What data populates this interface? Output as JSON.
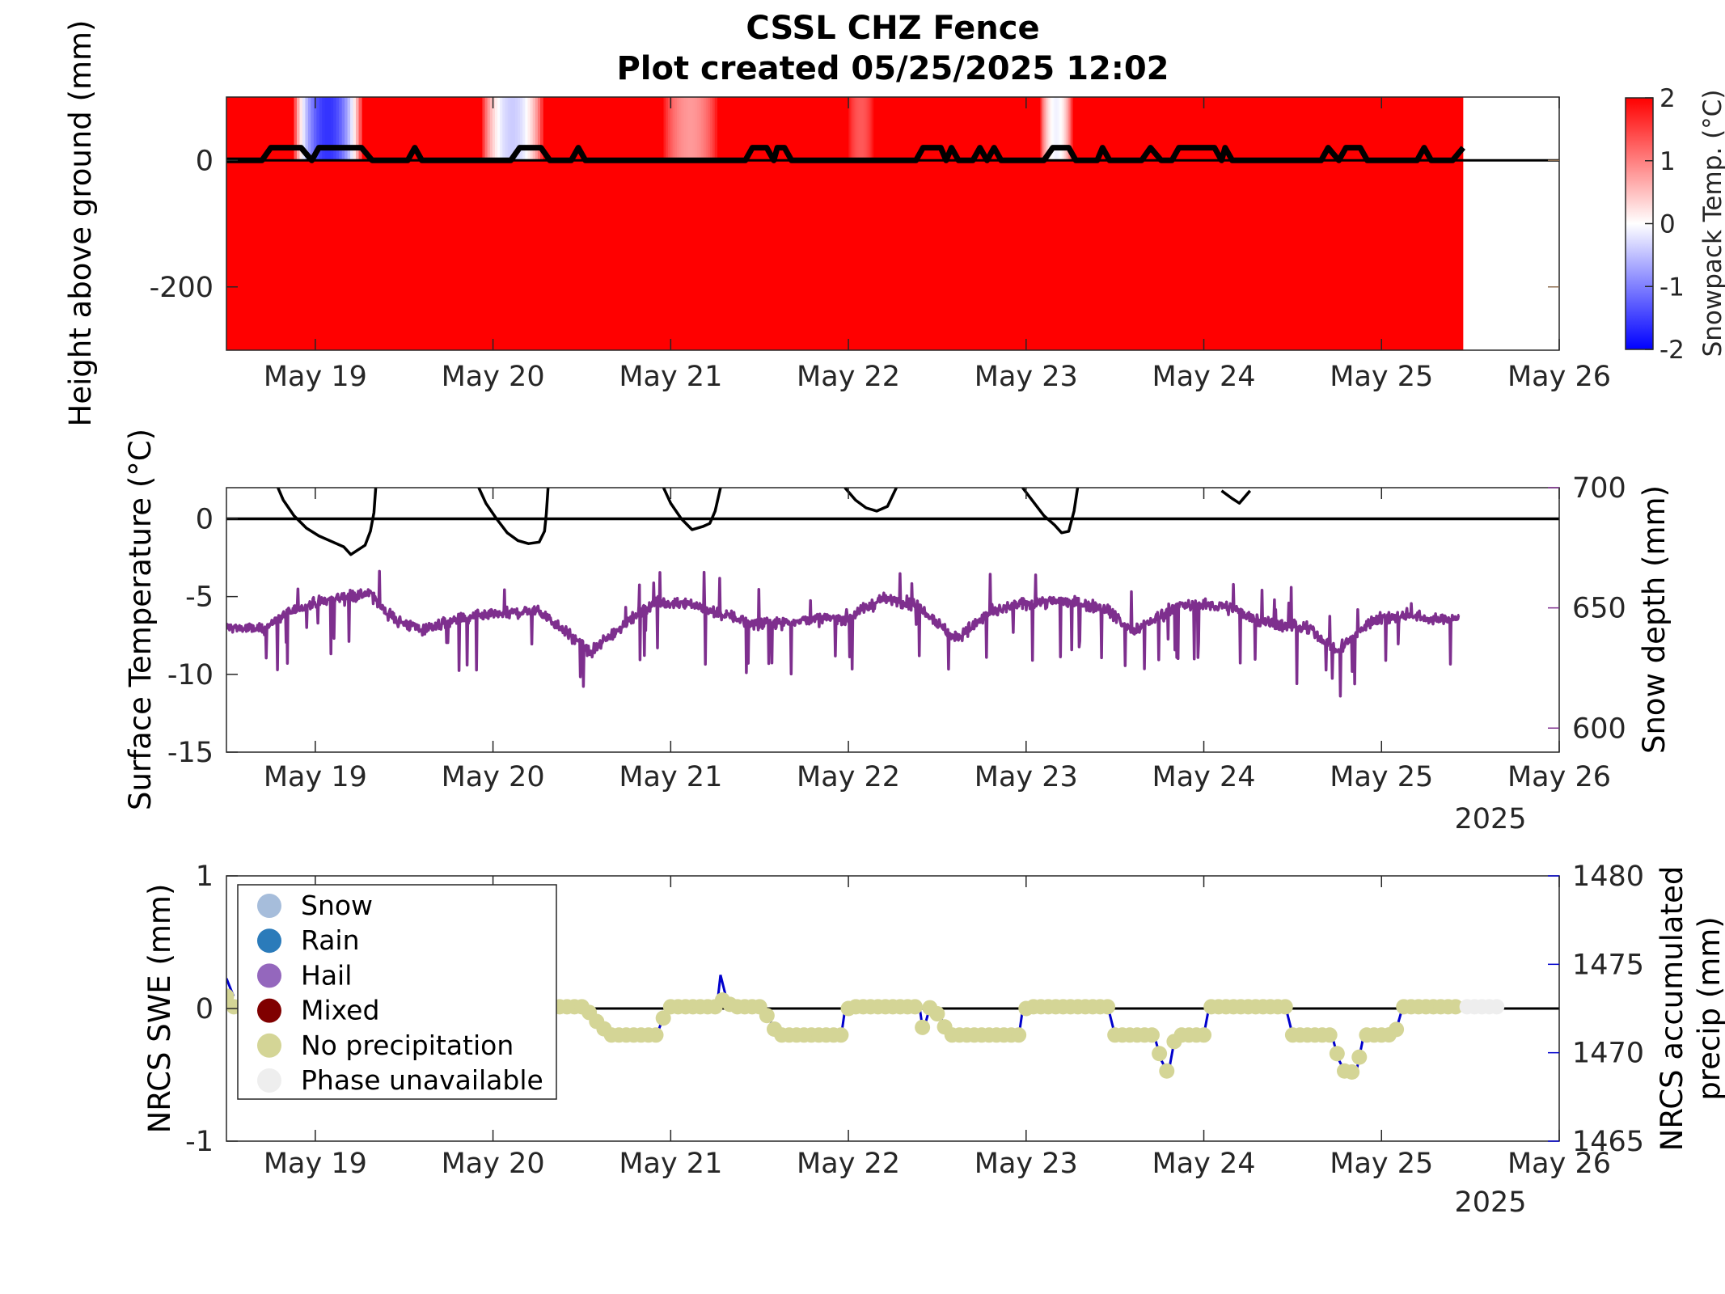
{
  "title": {
    "line1": "CSSL CHZ Fence",
    "line2": "Plot created 05/25/2025 12:02"
  },
  "colors": {
    "snowpack_hot": "#ff0000",
    "snowpack_cold": "#0000ff",
    "snow_depth": "#7e2f8e",
    "precip": "#0000cc",
    "no_precip_marker": "#d4d596",
    "phase_unavailable": "#eeeeee",
    "snow": "#a6bddb",
    "rain": "#2b7bba",
    "hail": "#9467bd",
    "mixed": "#800000"
  },
  "chart_data": [
    {
      "type": "heatmap",
      "id": "snowpack",
      "ylabel": "Height above ground (mm)",
      "ylim": [
        -300,
        100
      ],
      "yticks": [
        -200,
        0
      ],
      "xticks": [
        "May 19",
        "May 20",
        "May 21",
        "May 22",
        "May 23",
        "May 24",
        "May 25",
        "May 26"
      ],
      "xlim": [
        18.5,
        26.0
      ],
      "data_end": 25.46,
      "colorbar": {
        "label": "Snowpack Temp. (°C)",
        "range": [
          -2,
          2
        ],
        "ticks": [
          "-2",
          "-1",
          "0",
          "1",
          "2"
        ],
        "colormap": "blue-white-red"
      },
      "note_fill": "cells below ground are +2 °C; above-ground cells show cold bands",
      "cold_bands": [
        {
          "x0": 18.88,
          "x1": 19.26,
          "temp": -1.6
        },
        {
          "x0": 19.94,
          "x1": 20.28,
          "temp": -0.4
        },
        {
          "x0": 20.96,
          "x1": 21.26,
          "temp": 0.8
        },
        {
          "x0": 22.0,
          "x1": 22.14,
          "temp": 1.3
        },
        {
          "x0": 23.08,
          "x1": 23.26,
          "temp": -0.1
        }
      ],
      "snow_surface_line": [
        [
          18.5,
          0
        ],
        [
          18.7,
          0
        ],
        [
          18.75,
          20
        ],
        [
          18.92,
          20
        ],
        [
          18.98,
          0
        ],
        [
          19.02,
          20
        ],
        [
          19.26,
          20
        ],
        [
          19.32,
          0
        ],
        [
          19.52,
          0
        ],
        [
          19.56,
          20
        ],
        [
          19.6,
          0
        ],
        [
          20.1,
          0
        ],
        [
          20.15,
          20
        ],
        [
          20.27,
          20
        ],
        [
          20.32,
          0
        ],
        [
          20.44,
          0
        ],
        [
          20.48,
          20
        ],
        [
          20.52,
          0
        ],
        [
          21.42,
          0
        ],
        [
          21.46,
          20
        ],
        [
          21.54,
          20
        ],
        [
          21.58,
          0
        ],
        [
          21.6,
          20
        ],
        [
          21.64,
          20
        ],
        [
          21.68,
          0
        ],
        [
          22.38,
          0
        ],
        [
          22.42,
          20
        ],
        [
          22.52,
          20
        ],
        [
          22.55,
          0
        ],
        [
          22.58,
          20
        ],
        [
          22.62,
          0
        ],
        [
          22.7,
          0
        ],
        [
          22.74,
          20
        ],
        [
          22.78,
          0
        ],
        [
          22.82,
          20
        ],
        [
          22.86,
          0
        ],
        [
          23.1,
          0
        ],
        [
          23.15,
          20
        ],
        [
          23.24,
          20
        ],
        [
          23.28,
          0
        ],
        [
          23.4,
          0
        ],
        [
          23.43,
          20
        ],
        [
          23.47,
          0
        ],
        [
          23.65,
          0
        ],
        [
          23.7,
          20
        ],
        [
          23.76,
          0
        ],
        [
          23.82,
          0
        ],
        [
          23.86,
          20
        ],
        [
          24.06,
          20
        ],
        [
          24.1,
          0
        ],
        [
          24.12,
          20
        ],
        [
          24.16,
          0
        ],
        [
          24.66,
          0
        ],
        [
          24.7,
          20
        ],
        [
          24.76,
          0
        ],
        [
          24.8,
          20
        ],
        [
          24.88,
          20
        ],
        [
          24.92,
          0
        ],
        [
          25.2,
          0
        ],
        [
          25.24,
          20
        ],
        [
          25.28,
          0
        ],
        [
          25.4,
          0
        ],
        [
          25.46,
          20
        ]
      ],
      "zero_line": 0
    },
    {
      "type": "line",
      "id": "surface",
      "ylabel": "Surface Temperature (°C)",
      "ylim": [
        -15,
        2
      ],
      "yticks": [
        "0",
        "-5",
        "-10",
        "-15"
      ],
      "y2label": "Snow depth (mm)",
      "y2lim": [
        590,
        700
      ],
      "y2ticks": [
        "600",
        "650",
        "700"
      ],
      "xticks": [
        "May 19",
        "May 20",
        "May 21",
        "May 22",
        "May 23",
        "May 24",
        "May 25",
        "May 26"
      ],
      "xyear": "2025",
      "xlim": [
        18.5,
        26.0
      ],
      "zero_line": 0,
      "series": [
        {
          "role": "surface-temperature",
          "segments": [
            [
              [
                18.79,
                2
              ],
              [
                18.82,
                1.2
              ],
              [
                18.88,
                0.2
              ],
              [
                18.95,
                -0.6
              ],
              [
                19.02,
                -1.1
              ],
              [
                19.1,
                -1.5
              ],
              [
                19.16,
                -1.8
              ],
              [
                19.2,
                -2.3
              ],
              [
                19.24,
                -2.0
              ],
              [
                19.28,
                -1.7
              ],
              [
                19.31,
                -0.8
              ],
              [
                19.33,
                0.4
              ],
              [
                19.34,
                2
              ]
            ],
            [
              [
                19.92,
                2
              ],
              [
                19.96,
                1.0
              ],
              [
                20.02,
                0
              ],
              [
                20.08,
                -0.9
              ],
              [
                20.14,
                -1.4
              ],
              [
                20.2,
                -1.6
              ],
              [
                20.26,
                -1.5
              ],
              [
                20.29,
                -0.8
              ],
              [
                20.3,
                0.3
              ],
              [
                20.31,
                2
              ]
            ],
            [
              [
                20.96,
                2
              ],
              [
                21.0,
                1.0
              ],
              [
                21.06,
                0
              ],
              [
                21.12,
                -0.7
              ],
              [
                21.18,
                -0.5
              ],
              [
                21.22,
                -0.3
              ],
              [
                21.25,
                0.5
              ],
              [
                21.28,
                2
              ]
            ],
            [
              [
                21.98,
                2
              ],
              [
                22.04,
                1.2
              ],
              [
                22.1,
                0.7
              ],
              [
                22.16,
                0.5
              ],
              [
                22.22,
                0.8
              ],
              [
                22.27,
                2
              ]
            ],
            [
              [
                22.98,
                2
              ],
              [
                23.04,
                1.1
              ],
              [
                23.1,
                0.2
              ],
              [
                23.16,
                -0.4
              ],
              [
                23.2,
                -0.9
              ],
              [
                23.24,
                -0.8
              ],
              [
                23.27,
                0.5
              ],
              [
                23.29,
                2
              ]
            ],
            [
              [
                24.1,
                1.8
              ],
              [
                24.16,
                1.3
              ],
              [
                24.2,
                1.0
              ],
              [
                24.26,
                1.8
              ]
            ]
          ]
        },
        {
          "name": "Snow depth (mm)",
          "axis": "right",
          "anchors": [
            [
              18.5,
              642
            ],
            [
              18.7,
              641
            ],
            [
              18.9,
              650
            ],
            [
              19.1,
              654
            ],
            [
              19.3,
              656
            ],
            [
              19.45,
              645
            ],
            [
              19.6,
              641
            ],
            [
              19.8,
              645
            ],
            [
              20.0,
              647
            ],
            [
              20.25,
              649
            ],
            [
              20.4,
              641
            ],
            [
              20.55,
              631
            ],
            [
              20.7,
              641
            ],
            [
              20.9,
              652
            ],
            [
              21.1,
              652
            ],
            [
              21.3,
              647
            ],
            [
              21.5,
              643
            ],
            [
              21.75,
              645
            ],
            [
              22.0,
              646
            ],
            [
              22.2,
              654
            ],
            [
              22.4,
              651
            ],
            [
              22.6,
              637
            ],
            [
              22.8,
              648
            ],
            [
              23.0,
              652
            ],
            [
              23.2,
              653
            ],
            [
              23.45,
              650
            ],
            [
              23.6,
              640
            ],
            [
              23.85,
              651
            ],
            [
              24.1,
              651
            ],
            [
              24.35,
              644
            ],
            [
              24.6,
              641
            ],
            [
              24.75,
              632
            ],
            [
              24.95,
              645
            ],
            [
              25.15,
              647
            ],
            [
              25.3,
              645
            ],
            [
              25.44,
              646
            ]
          ],
          "x_end": 25.44
        }
      ]
    },
    {
      "type": "scatter",
      "id": "precip",
      "ylabel": "NRCS SWE (mm)",
      "ylim": [
        -1,
        1
      ],
      "yticks": [
        "1",
        "0",
        "-1"
      ],
      "y2label": "NRCS accumulated precip (mm)",
      "y2label_lines": [
        "NRCS accumulated",
        "precip (mm)"
      ],
      "y2lim": [
        1465,
        1480
      ],
      "y2ticks": [
        "1480",
        "1475",
        "1470",
        "1465"
      ],
      "xticks": [
        "May 19",
        "May 20",
        "May 21",
        "May 22",
        "May 23",
        "May 24",
        "May 25",
        "May 26"
      ],
      "xyear": "2025",
      "xlim": [
        18.5,
        26.0
      ],
      "zero_line": 0,
      "legend": {
        "placement": "top-left",
        "entries": [
          "Snow",
          "Rain",
          "Hail",
          "Mixed",
          "No precipitation",
          "Phase unavailable"
        ]
      },
      "levels": [
        [
          18.5,
          1473.2
        ],
        [
          18.54,
          1472.6
        ],
        [
          19.1,
          1472.6
        ],
        [
          20.35,
          1472.6
        ],
        [
          20.52,
          1472.6
        ],
        [
          20.56,
          1472.0
        ],
        [
          20.66,
          1471.0
        ],
        [
          20.92,
          1471.0
        ],
        [
          20.96,
          1472.0
        ],
        [
          21.0,
          1472.6
        ],
        [
          21.26,
          1472.6
        ],
        [
          21.31,
          1473.2
        ],
        [
          21.34,
          1472.6
        ],
        [
          21.5,
          1472.6
        ],
        [
          21.55,
          1472.0
        ],
        [
          21.6,
          1471.0
        ],
        [
          21.96,
          1471.0
        ],
        [
          21.98,
          1472.4
        ],
        [
          22.02,
          1472.6
        ],
        [
          22.4,
          1472.6
        ],
        [
          22.42,
          1471.2
        ],
        [
          22.46,
          1472.6
        ],
        [
          22.52,
          1472.0
        ],
        [
          22.56,
          1471.0
        ],
        [
          22.96,
          1471.0
        ],
        [
          22.98,
          1472.4
        ],
        [
          23.02,
          1472.6
        ],
        [
          23.46,
          1472.6
        ],
        [
          23.5,
          1471.0
        ],
        [
          23.72,
          1471.0
        ],
        [
          23.76,
          1469.6
        ],
        [
          23.8,
          1468.8
        ],
        [
          23.84,
          1471.0
        ],
        [
          24.0,
          1471.0
        ],
        [
          24.03,
          1472.6
        ],
        [
          24.46,
          1472.6
        ],
        [
          24.5,
          1471.0
        ],
        [
          24.72,
          1471.0
        ],
        [
          24.76,
          1469.6
        ],
        [
          24.8,
          1468.8
        ],
        [
          24.86,
          1469.0
        ],
        [
          24.9,
          1471.0
        ],
        [
          25.04,
          1471.0
        ],
        [
          25.08,
          1471.2
        ],
        [
          25.12,
          1472.6
        ],
        [
          25.44,
          1472.6
        ]
      ],
      "line_extra": [
        [
          18.5,
          1474.2
        ],
        [
          21.28,
          1474.4
        ]
      ],
      "phase_unavailable_range": [
        25.44,
        25.66
      ]
    }
  ]
}
